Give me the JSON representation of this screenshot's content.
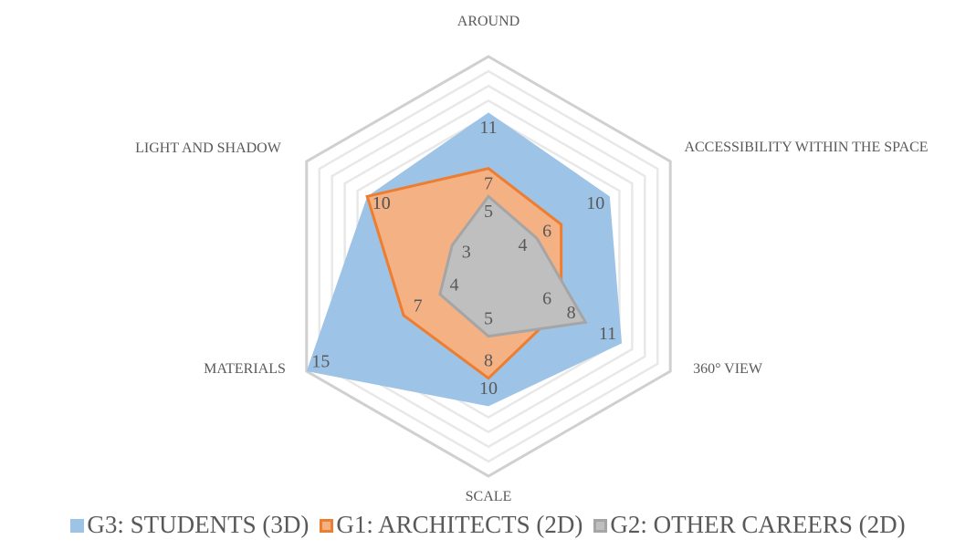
{
  "chart_data": {
    "type": "radar",
    "categories": [
      "AROUND",
      "ACCESSIBILITY WITHIN THE SPACE",
      "360° VIEW",
      "SCALE",
      "MATERIALS",
      "LIGHT AND SHADOW"
    ],
    "series": [
      {
        "name": "G3: STUDENTS (3D)",
        "color": "#9dc3e6",
        "values": [
          11,
          10,
          11,
          10,
          15,
          10
        ]
      },
      {
        "name": "G1: ARCHITECTS (2D)",
        "color": "#ed7d31",
        "values": [
          7,
          6,
          6,
          8,
          7,
          10
        ]
      },
      {
        "name": "G2: OTHER CAREERS (2D)",
        "color": "#a5a5a5",
        "values": [
          5,
          4,
          8,
          5,
          4,
          3
        ]
      }
    ],
    "ylim": [
      0,
      15
    ]
  }
}
